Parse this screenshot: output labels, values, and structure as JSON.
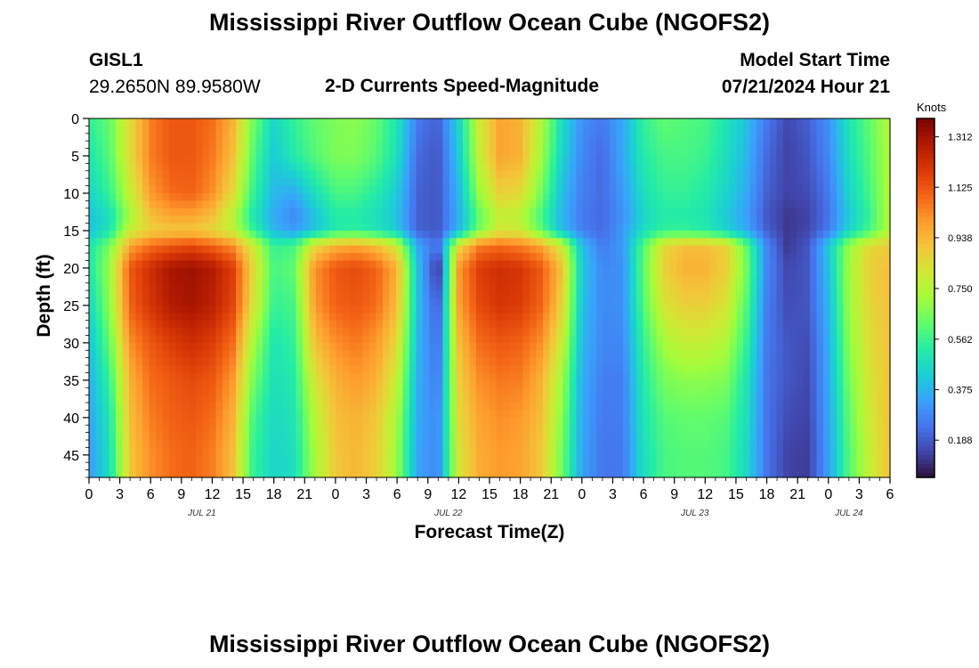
{
  "page": {
    "title_top": "Mississippi River Outflow Ocean Cube (NGOFS2)",
    "title_bottom": "Mississippi River Outflow Ocean Cube (NGOFS2)",
    "station": "GISL1",
    "coords": "29.2650N  89.9580W",
    "subtitle": "2-D Currents Speed-Magnitude",
    "model_start_label": "Model Start Time",
    "model_start_value": "07/21/2024 Hour 21",
    "colorbar_units": "Knots"
  },
  "colors": {
    "turbo_stops": [
      "#30123b",
      "#4145ab",
      "#4675ed",
      "#39a2fc",
      "#1bcfd4",
      "#24eca6",
      "#61fc6c",
      "#a4fc3b",
      "#d1e834",
      "#f3c63a",
      "#fe9b2d",
      "#f36315",
      "#d93806",
      "#b11901",
      "#7a0403"
    ]
  },
  "chart_data": {
    "type": "heatmap",
    "title": "Mississippi River Outflow Ocean Cube (NGOFS2)",
    "subtitle": "2-D Currents Speed-Magnitude",
    "xlabel": "Forecast Time(Z)",
    "ylabel": "Depth (ft)",
    "z_units": "Knots",
    "x_range_hours": [
      0,
      78
    ],
    "x_tick_labels": [
      "0",
      "3",
      "6",
      "9",
      "12",
      "15",
      "18",
      "21",
      "0",
      "3",
      "6",
      "9",
      "12",
      "15",
      "18",
      "21",
      "0",
      "3",
      "6",
      "9",
      "12",
      "15",
      "18",
      "21",
      "0",
      "3",
      "6"
    ],
    "date_labels": [
      {
        "label": "JUL 21",
        "hour": 11
      },
      {
        "label": "JUL 22",
        "hour": 35
      },
      {
        "label": "JUL 23",
        "hour": 59
      },
      {
        "label": "JUL 24",
        "hour": 74
      }
    ],
    "y_range": [
      0,
      48
    ],
    "y_ticks": [
      0,
      5,
      10,
      15,
      20,
      25,
      30,
      35,
      40,
      45
    ],
    "colorbar_ticks": [
      "1.312",
      "1.125",
      "0.938",
      "0.750",
      "0.562",
      "0.375",
      "0.188"
    ],
    "colorbar_range": [
      0.05,
      1.38
    ],
    "time_hours": [
      0,
      2,
      4,
      6,
      8,
      10,
      12,
      14,
      16,
      18,
      20,
      22,
      24,
      26,
      28,
      30,
      32,
      34,
      36,
      38,
      40,
      42,
      44,
      46,
      48,
      50,
      52,
      54,
      56,
      58,
      60,
      62,
      64,
      66,
      68,
      70,
      72,
      74,
      76,
      78
    ],
    "depths_ft": [
      0,
      5,
      10,
      13,
      15,
      17,
      20,
      25,
      30,
      35,
      40,
      45,
      48
    ],
    "speed_knots": [
      [
        0.55,
        0.62,
        0.85,
        1.05,
        1.12,
        1.12,
        1.08,
        0.95,
        0.65,
        0.45,
        0.55,
        0.62,
        0.66,
        0.68,
        0.62,
        0.5,
        0.25,
        0.2,
        0.45,
        0.8,
        0.98,
        0.95,
        0.75,
        0.48,
        0.3,
        0.25,
        0.35,
        0.55,
        0.62,
        0.6,
        0.58,
        0.5,
        0.4,
        0.25,
        0.15,
        0.2,
        0.3,
        0.5,
        0.62,
        0.75
      ],
      [
        0.5,
        0.6,
        0.85,
        1.05,
        1.12,
        1.12,
        1.06,
        0.92,
        0.6,
        0.42,
        0.52,
        0.6,
        0.66,
        0.66,
        0.6,
        0.48,
        0.22,
        0.18,
        0.42,
        0.78,
        0.98,
        0.95,
        0.72,
        0.45,
        0.28,
        0.22,
        0.35,
        0.52,
        0.58,
        0.58,
        0.56,
        0.48,
        0.38,
        0.22,
        0.14,
        0.18,
        0.28,
        0.48,
        0.6,
        0.75
      ],
      [
        0.45,
        0.55,
        0.78,
        1.0,
        1.08,
        1.1,
        1.02,
        0.85,
        0.55,
        0.38,
        0.35,
        0.48,
        0.58,
        0.58,
        0.52,
        0.42,
        0.2,
        0.18,
        0.38,
        0.7,
        0.88,
        0.85,
        0.65,
        0.4,
        0.26,
        0.22,
        0.32,
        0.48,
        0.55,
        0.55,
        0.52,
        0.45,
        0.35,
        0.2,
        0.14,
        0.16,
        0.25,
        0.45,
        0.58,
        0.75
      ],
      [
        0.4,
        0.48,
        0.72,
        0.92,
        0.98,
        0.98,
        0.92,
        0.75,
        0.5,
        0.35,
        0.28,
        0.4,
        0.52,
        0.52,
        0.48,
        0.4,
        0.2,
        0.18,
        0.36,
        0.62,
        0.78,
        0.75,
        0.58,
        0.38,
        0.25,
        0.22,
        0.3,
        0.45,
        0.52,
        0.52,
        0.5,
        0.42,
        0.33,
        0.18,
        0.12,
        0.14,
        0.24,
        0.42,
        0.55,
        0.75
      ],
      [
        0.4,
        0.5,
        0.78,
        0.88,
        0.9,
        0.9,
        0.86,
        0.78,
        0.55,
        0.38,
        0.32,
        0.42,
        0.52,
        0.54,
        0.5,
        0.42,
        0.2,
        0.18,
        0.38,
        0.65,
        0.82,
        0.8,
        0.62,
        0.4,
        0.26,
        0.22,
        0.32,
        0.48,
        0.55,
        0.55,
        0.52,
        0.45,
        0.35,
        0.2,
        0.12,
        0.15,
        0.25,
        0.45,
        0.58,
        0.75
      ],
      [
        0.5,
        0.65,
        0.98,
        1.08,
        1.12,
        1.15,
        1.1,
        1.02,
        0.8,
        0.55,
        0.58,
        0.85,
        0.95,
        0.98,
        0.92,
        0.8,
        0.35,
        0.22,
        0.85,
        1.05,
        1.08,
        1.05,
        0.98,
        0.8,
        0.4,
        0.25,
        0.32,
        0.6,
        0.85,
        0.92,
        0.92,
        0.88,
        0.62,
        0.28,
        0.12,
        0.18,
        0.42,
        0.7,
        0.85,
        0.9
      ],
      [
        0.5,
        0.7,
        1.12,
        1.22,
        1.3,
        1.32,
        1.28,
        1.18,
        0.85,
        0.58,
        0.62,
        1.02,
        1.12,
        1.15,
        1.1,
        0.95,
        0.4,
        0.1,
        1.0,
        1.18,
        1.22,
        1.2,
        1.12,
        0.92,
        0.42,
        0.28,
        0.3,
        0.62,
        0.88,
        0.95,
        0.95,
        0.88,
        0.65,
        0.28,
        0.15,
        0.18,
        0.4,
        0.72,
        0.88,
        0.92
      ],
      [
        0.45,
        0.68,
        1.1,
        1.2,
        1.28,
        1.3,
        1.26,
        1.16,
        0.82,
        0.55,
        0.58,
        1.0,
        1.1,
        1.12,
        1.08,
        0.92,
        0.4,
        0.18,
        0.98,
        1.15,
        1.2,
        1.18,
        1.1,
        0.88,
        0.4,
        0.28,
        0.3,
        0.6,
        0.82,
        0.88,
        0.88,
        0.82,
        0.6,
        0.26,
        0.16,
        0.18,
        0.38,
        0.7,
        0.86,
        0.92
      ],
      [
        0.4,
        0.62,
        1.02,
        1.12,
        1.18,
        1.22,
        1.18,
        1.08,
        0.72,
        0.5,
        0.55,
        0.92,
        1.02,
        1.06,
        1.0,
        0.85,
        0.38,
        0.22,
        0.92,
        1.08,
        1.12,
        1.1,
        1.02,
        0.8,
        0.38,
        0.28,
        0.28,
        0.55,
        0.72,
        0.78,
        0.78,
        0.74,
        0.55,
        0.25,
        0.18,
        0.16,
        0.36,
        0.68,
        0.84,
        0.92
      ],
      [
        0.36,
        0.55,
        0.95,
        1.08,
        1.12,
        1.15,
        1.12,
        1.0,
        0.65,
        0.48,
        0.52,
        0.82,
        0.95,
        1.0,
        0.95,
        0.78,
        0.36,
        0.25,
        0.88,
        1.02,
        1.06,
        1.05,
        0.95,
        0.72,
        0.36,
        0.26,
        0.26,
        0.52,
        0.65,
        0.68,
        0.68,
        0.66,
        0.5,
        0.24,
        0.18,
        0.15,
        0.35,
        0.65,
        0.82,
        0.92
      ],
      [
        0.34,
        0.5,
        0.92,
        1.05,
        1.1,
        1.12,
        1.08,
        0.95,
        0.58,
        0.46,
        0.5,
        0.75,
        0.92,
        0.95,
        0.9,
        0.72,
        0.35,
        0.28,
        0.85,
        0.98,
        1.02,
        1.0,
        0.92,
        0.68,
        0.35,
        0.25,
        0.26,
        0.5,
        0.6,
        0.62,
        0.62,
        0.6,
        0.48,
        0.24,
        0.16,
        0.14,
        0.34,
        0.62,
        0.8,
        0.92
      ],
      [
        0.32,
        0.48,
        0.9,
        1.02,
        1.08,
        1.1,
        1.05,
        0.92,
        0.55,
        0.45,
        0.48,
        0.72,
        0.9,
        0.94,
        0.88,
        0.7,
        0.34,
        0.28,
        0.82,
        0.96,
        1.0,
        0.98,
        0.9,
        0.65,
        0.34,
        0.24,
        0.25,
        0.48,
        0.58,
        0.6,
        0.6,
        0.58,
        0.46,
        0.24,
        0.14,
        0.13,
        0.33,
        0.6,
        0.78,
        0.92
      ],
      [
        0.32,
        0.48,
        0.9,
        1.02,
        1.08,
        1.1,
        1.05,
        0.92,
        0.55,
        0.45,
        0.48,
        0.72,
        0.9,
        0.94,
        0.88,
        0.7,
        0.34,
        0.28,
        0.82,
        0.96,
        1.0,
        0.98,
        0.9,
        0.65,
        0.34,
        0.24,
        0.25,
        0.48,
        0.58,
        0.6,
        0.6,
        0.58,
        0.46,
        0.24,
        0.14,
        0.13,
        0.33,
        0.6,
        0.78,
        0.92
      ]
    ]
  }
}
